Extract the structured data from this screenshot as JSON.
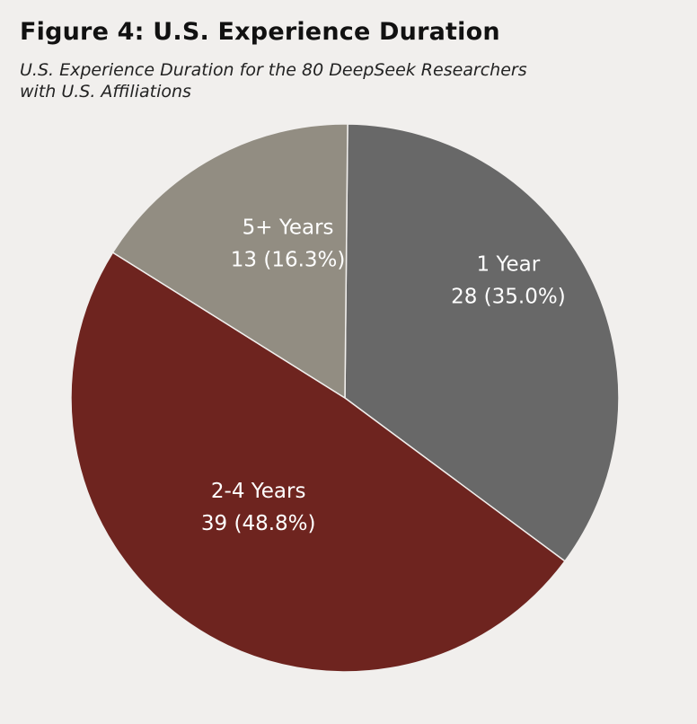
{
  "figure": {
    "title": "Figure 4: U.S. Experience Duration",
    "subtitle_line1": "U.S. Experience Duration for the 80 DeepSeek Researchers",
    "subtitle_line2": "with U.S. Affiliations"
  },
  "chart_data": {
    "type": "pie",
    "title": "Figure 4: U.S. Experience Duration",
    "subtitle": "U.S. Experience Duration for the 80 DeepSeek Researchers with U.S. Affiliations",
    "total": 80,
    "slices": [
      {
        "label": "1 Year",
        "value": 28,
        "percent": 35.0,
        "value_label": "28 (35.0%)",
        "color": "#686868"
      },
      {
        "label": "2-4 Years",
        "value": 39,
        "percent": 48.8,
        "value_label": "39 (48.8%)",
        "color": "#6e241f"
      },
      {
        "label": "5+ Years",
        "value": 13,
        "percent": 16.3,
        "value_label": "13 (16.3%)",
        "color": "#928d82"
      }
    ],
    "legend": "none"
  }
}
